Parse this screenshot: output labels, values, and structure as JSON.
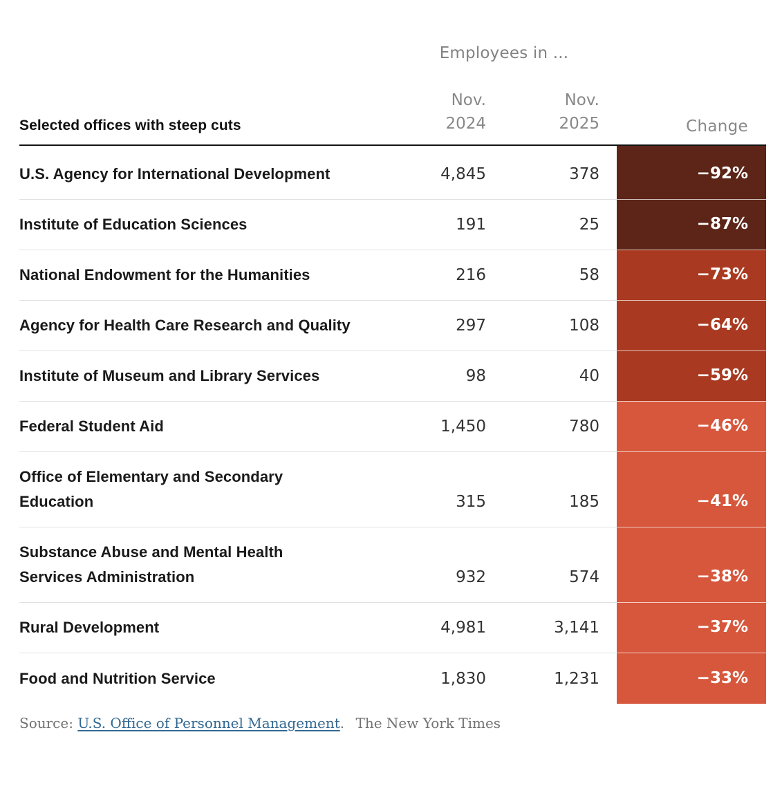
{
  "chart_data": {
    "type": "table",
    "group_header": "Employees in ...",
    "row_header_title": "Selected offices with steep cuts",
    "columns": [
      {
        "id": "nov_2024",
        "label": "Nov.\n2024"
      },
      {
        "id": "nov_2025",
        "label": "Nov.\n2025"
      },
      {
        "id": "change",
        "label": "Change"
      }
    ],
    "rows": [
      {
        "name": "U.S. Agency for International Development",
        "nov_2024": "4,845",
        "nov_2025": "378",
        "change": "−92%",
        "color": "#5C2517"
      },
      {
        "name": "Institute of Education Sciences",
        "nov_2024": "191",
        "nov_2025": "25",
        "change": "−87%",
        "color": "#5C2517"
      },
      {
        "name": "National Endowment for the Humanities",
        "nov_2024": "216",
        "nov_2025": "58",
        "change": "−73%",
        "color": "#A93A21"
      },
      {
        "name": "Agency for Health Care Research and Quality",
        "nov_2024": "297",
        "nov_2025": "108",
        "change": "−64%",
        "color": "#A93A21"
      },
      {
        "name": "Institute of Museum and Library Services",
        "nov_2024": "98",
        "nov_2025": "40",
        "change": "−59%",
        "color": "#A93A21"
      },
      {
        "name": "Federal Student Aid",
        "nov_2024": "1,450",
        "nov_2025": "780",
        "change": "−46%",
        "color": "#D7573C"
      },
      {
        "name": "Office of Elementary and Secondary\nEducation",
        "nov_2024": "315",
        "nov_2025": "185",
        "change": "−41%",
        "color": "#D7573C"
      },
      {
        "name": "Substance Abuse and Mental Health\nServices Administration",
        "nov_2024": "932",
        "nov_2025": "574",
        "change": "−38%",
        "color": "#D7573C"
      },
      {
        "name": "Rural Development",
        "nov_2024": "4,981",
        "nov_2025": "3,141",
        "change": "−37%",
        "color": "#D7573C"
      },
      {
        "name": "Food and Nutrition Service",
        "nov_2024": "1,830",
        "nov_2025": "1,231",
        "change": "−33%",
        "color": "#D7573C"
      }
    ],
    "layout": {
      "legend": "none",
      "grid": "row-rules",
      "change_text_color": "#FFFFFF",
      "row_rule_color": "#E2E2E2",
      "header_rule_color": "#121212"
    }
  },
  "footer": {
    "source_label": "Source:",
    "source_link": "U.S. Office of Personnel Management",
    "period": ".",
    "credit": "The New York Times",
    "link_color": "#326891"
  }
}
